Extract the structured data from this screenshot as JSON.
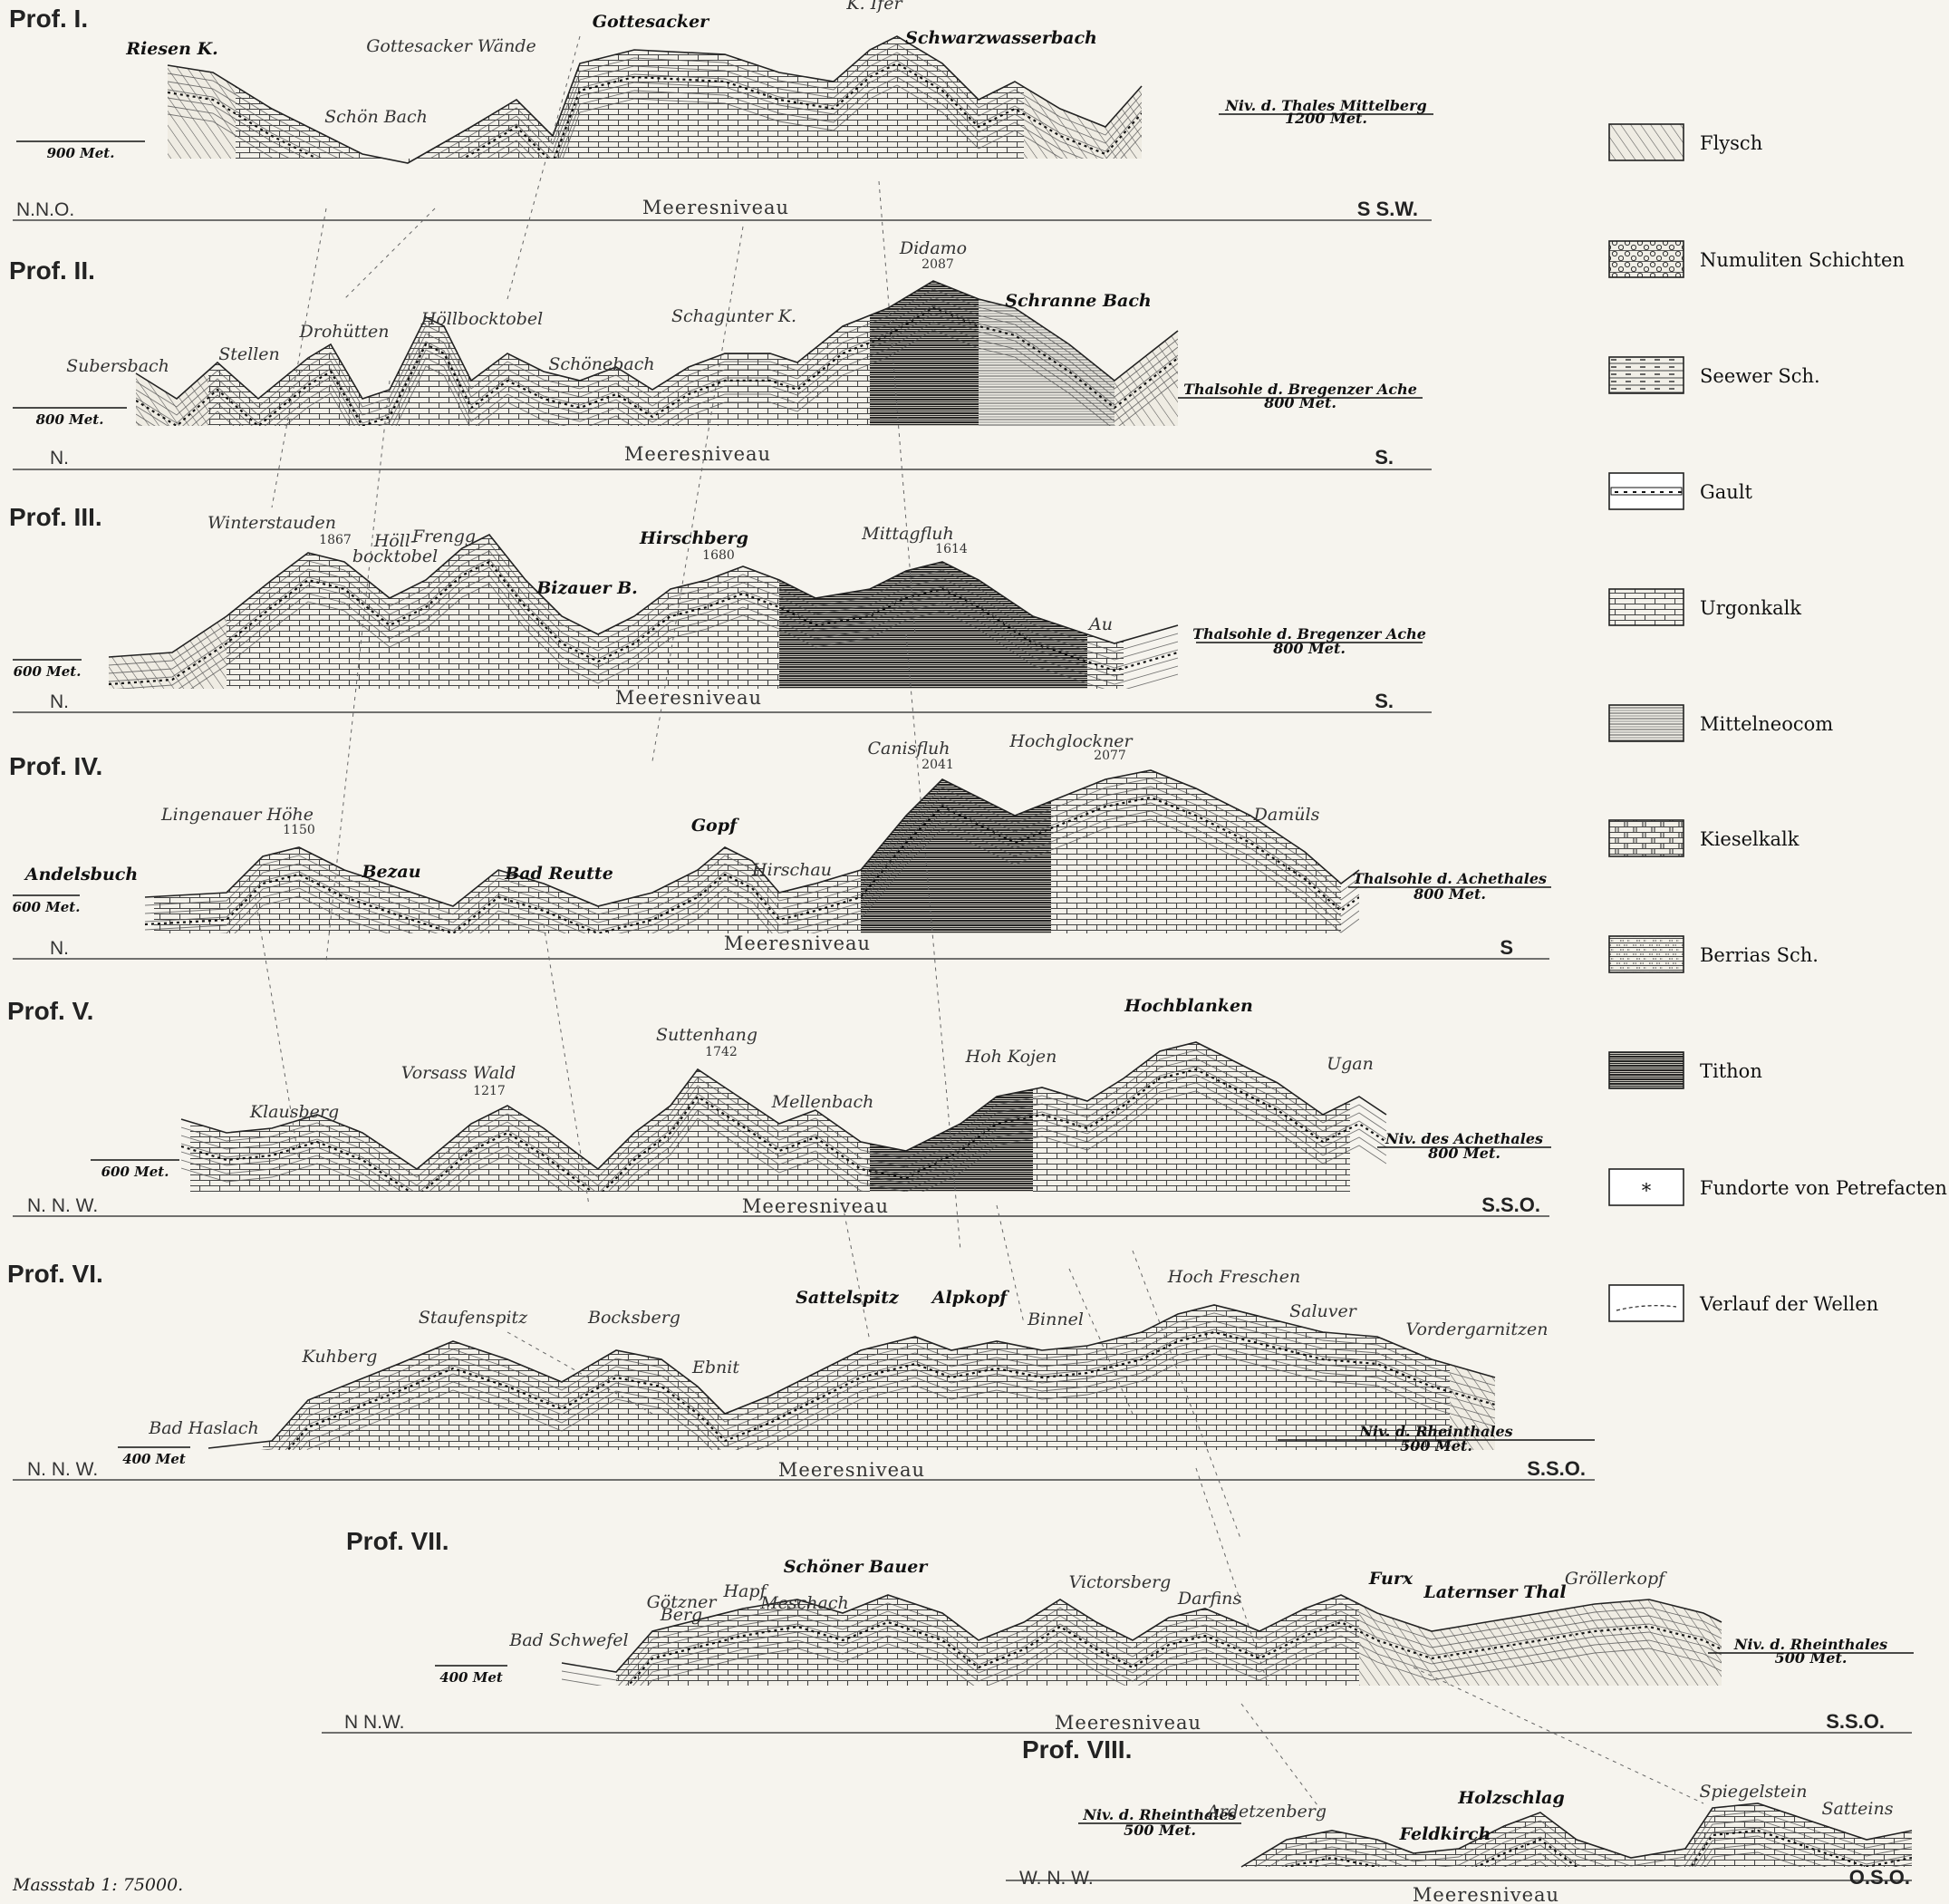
{
  "scale_text": "Massstab 1: 75000.",
  "legend": [
    {
      "label": "Flysch",
      "pattern": "flysch-pattern"
    },
    {
      "label": "Numuliten Schichten",
      "pattern": "numuliten-pattern"
    },
    {
      "label": "Seewer Sch.",
      "pattern": "seewer-pattern"
    },
    {
      "label": "Gault",
      "pattern": "gault-pattern"
    },
    {
      "label": "Urgonkalk",
      "pattern": "urgon-pattern"
    },
    {
      "label": "Mittelneocom",
      "pattern": "mittelneocom-pattern"
    },
    {
      "label": "Kieselkalk",
      "pattern": "kieselkalk-pattern"
    },
    {
      "label": "Berrias Sch.",
      "pattern": "berrias-pattern"
    },
    {
      "label": "Tithon",
      "pattern": "tithon-pattern"
    },
    {
      "label": "Fundorte von Petrefacten",
      "pattern": "star"
    },
    {
      "label": "Verlauf der Wellen",
      "pattern": "dashed"
    }
  ],
  "profiles": [
    {
      "title": "Prof. I.",
      "dir_left": "N.N.O.",
      "dir_right": "S S.W.",
      "meer": "Meeresniveau",
      "scale_left": "900 Met.",
      "niv_line1": "Niv. d. Thales Mittelberg",
      "niv_line2": "1200 Met.",
      "labels": [
        {
          "t": "Riesen K.",
          "b": true
        },
        {
          "t": "Gottesacker Wände",
          "b": false
        },
        {
          "t": "Gottesacker",
          "b": true
        },
        {
          "t": "K. Ifer",
          "b": false
        },
        {
          "t": "Schwarzwasserbach",
          "b": true
        },
        {
          "t": "Schön Bach",
          "b": false
        }
      ]
    },
    {
      "title": "Prof. II.",
      "dir_left": "N.",
      "dir_right": "S.",
      "meer": "Meeresniveau",
      "scale_left": "800 Met.",
      "niv_line1": "Thalsohle d. Bregenzer Ache",
      "niv_line2": "800 Met.",
      "labels": [
        {
          "t": "Subersbach",
          "b": false
        },
        {
          "t": "Stellen",
          "b": false
        },
        {
          "t": "Drohütten",
          "b": false
        },
        {
          "t": "Höllbocktobel",
          "b": false
        },
        {
          "t": "Schönebach",
          "b": false
        },
        {
          "t": "Schagunter K.",
          "b": false
        },
        {
          "t": "Didamo",
          "b": false
        },
        {
          "t": "2087",
          "b": false,
          "e": true
        },
        {
          "t": "Schranne Bach",
          "b": true
        }
      ]
    },
    {
      "title": "Prof. III.",
      "dir_left": "N.",
      "dir_right": "S.",
      "meer": "Meeresniveau",
      "scale_left": "600 Met.",
      "niv_line1": "Thalsohle d. Bregenzer Ache",
      "niv_line2": "800 Met.",
      "labels": [
        {
          "t": "Winterstauden",
          "b": false
        },
        {
          "t": "1867",
          "b": false,
          "e": true
        },
        {
          "t": "Höll-",
          "b": false
        },
        {
          "t": "bocktobel",
          "b": false
        },
        {
          "t": "Frengg",
          "b": false
        },
        {
          "t": "Bizauer B.",
          "b": true
        },
        {
          "t": "Hirschberg",
          "b": true
        },
        {
          "t": "1680",
          "b": false,
          "e": true
        },
        {
          "t": "Mittagfluh",
          "b": false
        },
        {
          "t": "1614",
          "b": false,
          "e": true
        },
        {
          "t": "Au",
          "b": false
        }
      ]
    },
    {
      "title": "Prof. IV.",
      "dir_left": "N.",
      "dir_right": "S",
      "meer": "Meeresniveau",
      "scale_left": "600 Met.",
      "niv_line1": "Thalsohle d. Achethales",
      "niv_line2": "800 Met.",
      "labels": [
        {
          "t": "Andelsbuch",
          "b": true
        },
        {
          "t": "Lingenauer Höhe",
          "b": false
        },
        {
          "t": "1150",
          "b": false,
          "e": true
        },
        {
          "t": "Bezau",
          "b": true
        },
        {
          "t": "Bad Reutte",
          "b": true
        },
        {
          "t": "Gopf",
          "b": true
        },
        {
          "t": "Hirschau",
          "b": false
        },
        {
          "t": "Canisfluh",
          "b": false
        },
        {
          "t": "2041",
          "b": false,
          "e": true
        },
        {
          "t": "Hochglockner",
          "b": false
        },
        {
          "t": "2077",
          "b": false,
          "e": true
        },
        {
          "t": "Damüls",
          "b": false
        }
      ]
    },
    {
      "title": "Prof. V.",
      "dir_left": "N. N. W.",
      "dir_right": "S.S.O.",
      "meer": "Meeresniveau",
      "scale_left": "600 Met.",
      "niv_line1": "Niv. des Achethales",
      "niv_line2": "800 Met.",
      "labels": [
        {
          "t": "Klausberg",
          "b": false
        },
        {
          "t": "Vorsass Wald",
          "b": false
        },
        {
          "t": "1217",
          "b": false,
          "e": true
        },
        {
          "t": "Suttenhang",
          "b": false
        },
        {
          "t": "1742",
          "b": false,
          "e": true
        },
        {
          "t": "Mellenbach",
          "b": false
        },
        {
          "t": "Hoh Kojen",
          "b": false
        },
        {
          "t": "Hochblanken",
          "b": true
        },
        {
          "t": "Ugan",
          "b": false
        }
      ]
    },
    {
      "title": "Prof. VI.",
      "dir_left": "N. N. W.",
      "dir_right": "S.S.O.",
      "meer": "Meeresniveau",
      "scale_left": "400 Met",
      "niv_line1": "Niv. d. Rheinthales",
      "niv_line2": "500 Met.",
      "labels": [
        {
          "t": "Bad Haslach",
          "b": false
        },
        {
          "t": "Kuhberg",
          "b": false
        },
        {
          "t": "Staufenspitz",
          "b": false
        },
        {
          "t": "Bocksberg",
          "b": false
        },
        {
          "t": "Ebnit",
          "b": false
        },
        {
          "t": "Sattelspitz",
          "b": true
        },
        {
          "t": "Alpkopf",
          "b": true
        },
        {
          "t": "Binnel",
          "b": false
        },
        {
          "t": "Hoch Freschen",
          "b": false
        },
        {
          "t": "Saluver",
          "b": false
        },
        {
          "t": "Vordergarnitzen",
          "b": false
        }
      ]
    },
    {
      "title": "Prof. VII.",
      "dir_left": "N N.W.",
      "dir_right": "S.S.O.",
      "meer": "Meeresniveau",
      "scale_left": "400 Met",
      "niv_line1": "Niv. d. Rheinthales",
      "niv_line2": "500 Met.",
      "labels": [
        {
          "t": "Bad Schwefel",
          "b": false
        },
        {
          "t": "Götzner",
          "b": false
        },
        {
          "t": "Berg",
          "b": false
        },
        {
          "t": "Hapf",
          "b": false
        },
        {
          "t": "Meschach",
          "b": false
        },
        {
          "t": "Schöner Bauer",
          "b": true
        },
        {
          "t": "Victorsberg",
          "b": false
        },
        {
          "t": "Darfins",
          "b": false
        },
        {
          "t": "Furx",
          "b": true
        },
        {
          "t": "Laternser Thal",
          "b": true
        },
        {
          "t": "Gröllerkopf",
          "b": false
        }
      ]
    },
    {
      "title": "Prof. VIII.",
      "dir_left": "W. N. W.",
      "dir_right": "O.S.O.",
      "meer": "Meeresniveau",
      "niv_line1": "Niv. d. Rheinthales",
      "niv_line2": "500 Met.",
      "labels": [
        {
          "t": "Ardetzenberg",
          "b": false
        },
        {
          "t": "Feldkirch",
          "b": true
        },
        {
          "t": "Holzschlag",
          "b": true
        },
        {
          "t": "Spiegelstein",
          "b": false
        },
        {
          "t": "Satteins",
          "b": false
        }
      ]
    }
  ]
}
